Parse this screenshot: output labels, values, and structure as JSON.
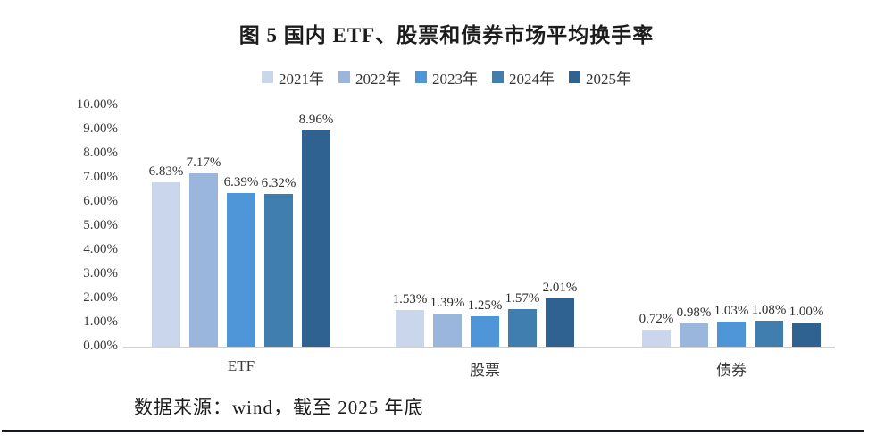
{
  "title": "图 5 国内 ETF、股票和债券市场平均换手率",
  "source_note": "数据来源：wind，截至 2025 年底",
  "colors": {
    "axis_line": "#cfcfcf",
    "footer_rule": "#14181f"
  },
  "chart_data": {
    "type": "bar",
    "title": "图 5 国内 ETF、股票和债券市场平均换手率",
    "categories": [
      "ETF",
      "股票",
      "债券"
    ],
    "series": [
      {
        "name": "2021年",
        "color": "#C9D6EC",
        "values": [
          6.83,
          1.53,
          0.72
        ],
        "labels": [
          "6.83%",
          "1.53%",
          "0.72%"
        ]
      },
      {
        "name": "2022年",
        "color": "#9AB6DD",
        "values": [
          7.17,
          1.39,
          0.98
        ],
        "labels": [
          "7.17%",
          "1.39%",
          "0.98%"
        ]
      },
      {
        "name": "2023年",
        "color": "#4E96D8",
        "values": [
          6.39,
          1.25,
          1.03
        ],
        "labels": [
          "6.39%",
          "1.25%",
          "1.03%"
        ]
      },
      {
        "name": "2024年",
        "color": "#3F7EAF",
        "values": [
          6.32,
          1.57,
          1.08
        ],
        "labels": [
          "6.32%",
          "1.57%",
          "1.08%"
        ]
      },
      {
        "name": "2025年",
        "color": "#2F6191",
        "values": [
          8.96,
          2.01,
          1.0
        ],
        "labels": [
          "8.96%",
          "2.01%",
          "1.00%"
        ]
      }
    ],
    "y_axis": {
      "ticks": [
        "0.00%",
        "1.00%",
        "2.00%",
        "3.00%",
        "4.00%",
        "5.00%",
        "6.00%",
        "7.00%",
        "8.00%",
        "9.00%",
        "10.00%"
      ],
      "min": 0,
      "max": 10,
      "step": 1
    },
    "grid": "off",
    "legend_position": "top",
    "xlabel": "",
    "ylabel": ""
  }
}
